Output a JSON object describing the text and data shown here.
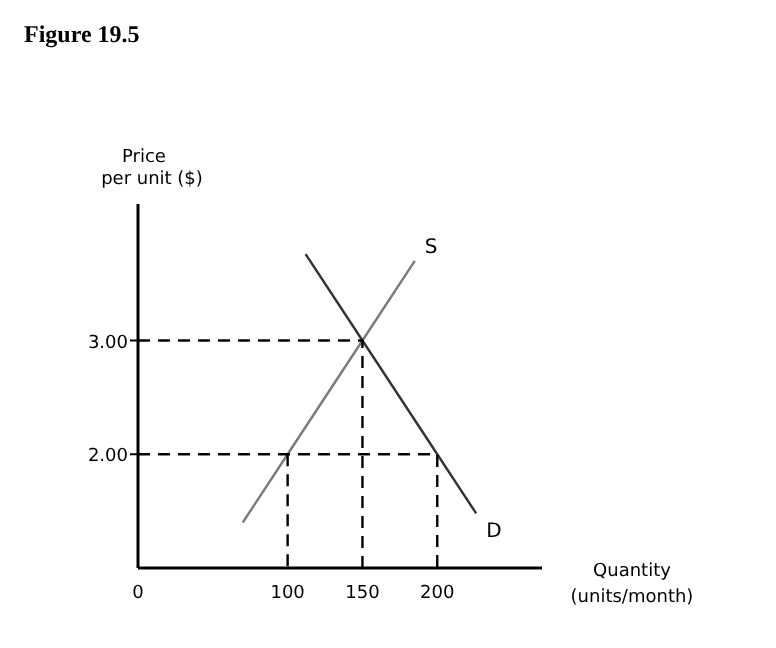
{
  "chart_data": {
    "type": "line",
    "title": "Figure 19.5",
    "xlabel": "Quantity (units/month)",
    "ylabel": "Price per unit ($)",
    "xlim": [
      0,
      270
    ],
    "ylim": [
      1,
      4.2
    ],
    "xticks": [
      0,
      100,
      150,
      200
    ],
    "yticks": [
      {
        "value": 2,
        "label": "2.00"
      },
      {
        "value": 3,
        "label": "3.00"
      }
    ],
    "grid": false,
    "marker": "none",
    "series": [
      {
        "name": "S",
        "color": "#7a7a7a",
        "x": [
          70,
          100,
          150,
          185
        ],
        "values": [
          1.4,
          2,
          3,
          3.7
        ]
      },
      {
        "name": "D",
        "color": "#333333",
        "x": [
          112,
          150,
          200,
          226
        ],
        "values": [
          3.76,
          3,
          2,
          1.48
        ]
      },
      {
        "color": "#000000",
        "line_style": "dashed",
        "x": [
          0,
          150,
          150
        ],
        "values": [
          3,
          3,
          1
        ]
      },
      {
        "color": "#000000",
        "line_style": "dashed",
        "x": [
          0,
          200,
          200
        ],
        "values": [
          2,
          2,
          1
        ]
      },
      {
        "color": "#000000",
        "line_style": "dashed",
        "x": [
          100,
          100
        ],
        "values": [
          2,
          1
        ]
      }
    ]
  }
}
